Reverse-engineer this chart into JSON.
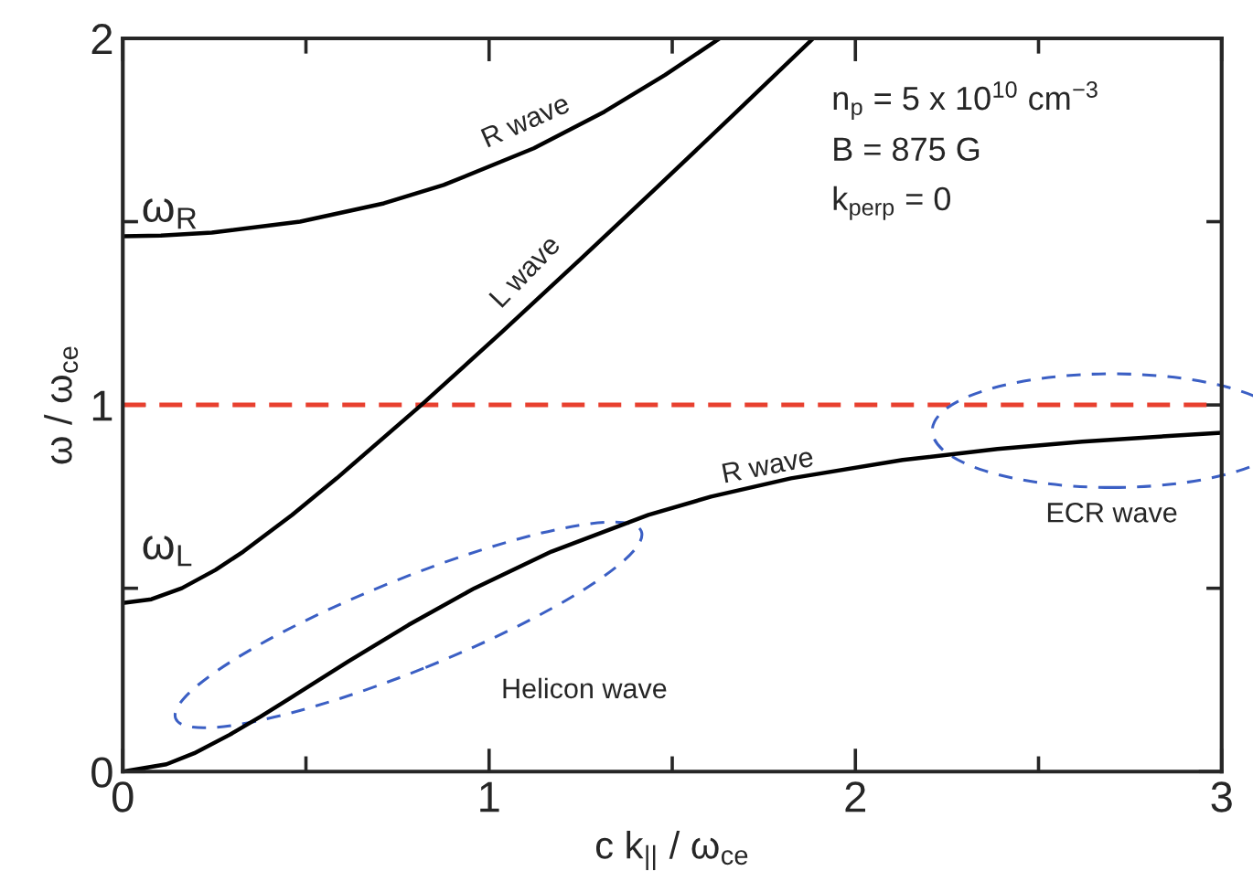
{
  "chart_data": {
    "type": "line",
    "xlabel": "c k$_{||}$ / ω$_{ce}$",
    "ylabel": "ω / ω$_{ce}$",
    "xlim": [
      0,
      3
    ],
    "ylim": [
      0,
      2
    ],
    "xticks": [
      0,
      {
        "value": 0.5,
        "label": null
      },
      1,
      {
        "value": 1.5,
        "label": null
      },
      2,
      {
        "value": 2.5,
        "label": null
      },
      3
    ],
    "yticks": [
      0,
      {
        "value": 0.5,
        "label": null
      },
      1,
      {
        "value": 1.5,
        "label": null
      },
      2
    ],
    "grid": false,
    "legend": false,
    "marker": "none",
    "line_style": "solid",
    "series": [
      {
        "color": "#000000",
        "x": [
          0,
          0.104,
          0.243,
          0.484,
          0.713,
          0.876,
          1.122,
          1.315,
          1.48,
          1.63
        ],
        "values": [
          1.46,
          1.462,
          1.47,
          1.5,
          1.55,
          1.6,
          1.7,
          1.8,
          1.9,
          2.0
        ]
      },
      {
        "color": "#000000",
        "x": [
          0,
          0.078,
          0.161,
          0.253,
          0.329,
          0.462,
          0.584,
          0.815,
          1.036,
          1.252,
          1.465,
          1.676,
          1.885
        ],
        "values": [
          0.46,
          0.47,
          0.5,
          0.55,
          0.6,
          0.7,
          0.8,
          1.0,
          1.2,
          1.4,
          1.6,
          1.8,
          2.0
        ]
      },
      {
        "color": "#000000",
        "x": [
          0,
          0.119,
          0.195,
          0.291,
          0.376,
          0.456,
          0.615,
          0.78,
          0.96,
          1.17,
          1.435,
          1.606,
          1.824,
          2.129,
          2.388,
          2.619,
          2.928,
          3.0
        ],
        "values": [
          0,
          0.02,
          0.05,
          0.1,
          0.15,
          0.2,
          0.3,
          0.4,
          0.5,
          0.6,
          0.7,
          0.75,
          0.8,
          0.85,
          0.88,
          0.9,
          0.92,
          0.924
        ]
      }
    ],
    "ref_lines": [
      {
        "axis": "y",
        "value": 1,
        "color": "#e8402f",
        "line_style": "dashed"
      }
    ],
    "annotations": [
      "ω$_{R}$",
      "ω$_{L}$",
      "R wave",
      "L wave",
      "R wave",
      "Helicon wave",
      "ECR wave",
      "n$_{p}$ = 5 x 10$^{10}$ cm$^{−3}$",
      "B = 875 G",
      "k$_{perp}$ = 0"
    ]
  }
}
